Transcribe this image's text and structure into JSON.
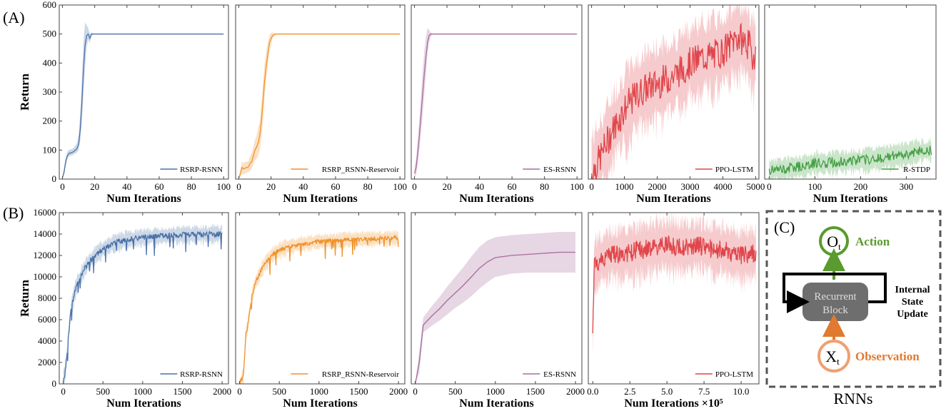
{
  "panel_labels": {
    "a": "(A)",
    "b": "(B)",
    "c": "(C)"
  },
  "colors": {
    "rsrp_rsnn": "#4a72a8",
    "rsrp_reservoir": "#f0922a",
    "es_rsnn": "#a86b9e",
    "ppo_lstm": "#e0454a",
    "r_stdp": "#45a045",
    "action": "#5a9a2e",
    "observation": "#e07a30",
    "block": "#6e6e6e"
  },
  "diagram": {
    "output_sub": "t",
    "output_base": "O",
    "input_base": "X",
    "input_sub": "t",
    "action_label": "Action",
    "observation_label": "Observation",
    "block_line1": "Recurrent",
    "block_line2": "Block",
    "internal_line1": "Internal",
    "internal_line2": "State",
    "internal_line3": "Update",
    "caption": "RNNs"
  },
  "chart_data": [
    {
      "id": "a1",
      "type": "line",
      "title": "",
      "legend": "RSRP-RSNN",
      "color": "#4a72a8",
      "xlabel": "Num Iterations",
      "ylabel": "Return",
      "xlim": [
        -2,
        103
      ],
      "ylim": [
        0,
        600
      ],
      "xticks": [
        0,
        20,
        40,
        60,
        80,
        100
      ],
      "yticks": [
        0,
        100,
        200,
        300,
        400,
        500,
        600
      ],
      "x": [
        0,
        1,
        2,
        3,
        4,
        5,
        6,
        7,
        8,
        9,
        10,
        11,
        12,
        13,
        14,
        15,
        16,
        17,
        18,
        19,
        20,
        25,
        30,
        40,
        60,
        80,
        100
      ],
      "y": [
        5,
        25,
        60,
        80,
        88,
        90,
        92,
        95,
        100,
        105,
        120,
        170,
        260,
        380,
        460,
        495,
        500,
        485,
        500,
        500,
        500,
        500,
        500,
        500,
        500,
        500,
        500
      ],
      "band": [
        [
          5,
          5
        ],
        [
          15,
          40
        ],
        [
          45,
          75
        ],
        [
          70,
          95
        ],
        [
          78,
          100
        ],
        [
          80,
          102
        ],
        [
          82,
          104
        ],
        [
          85,
          108
        ],
        [
          88,
          115
        ],
        [
          92,
          125
        ],
        [
          100,
          150
        ],
        [
          130,
          220
        ],
        [
          190,
          340
        ],
        [
          290,
          470
        ],
        [
          380,
          540
        ],
        [
          455,
          530
        ],
        [
          480,
          520
        ],
        [
          470,
          500
        ],
        [
          495,
          505
        ],
        [
          498,
          502
        ],
        [
          500,
          500
        ],
        [
          500,
          500
        ],
        [
          500,
          500
        ],
        [
          500,
          500
        ],
        [
          500,
          500
        ],
        [
          500,
          500
        ],
        [
          500,
          500
        ]
      ]
    },
    {
      "id": "a2",
      "type": "line",
      "legend": "RSRP_RSNN-Reservoir",
      "color": "#f0922a",
      "xlabel": "Num Iterations",
      "ylabel": "",
      "xlim": [
        -2,
        103
      ],
      "ylim": [
        0,
        600
      ],
      "xticks": [
        0,
        20,
        40,
        60,
        80,
        100
      ],
      "yticks": [],
      "x": [
        0,
        1,
        2,
        3,
        4,
        5,
        6,
        7,
        8,
        9,
        10,
        11,
        12,
        13,
        14,
        15,
        16,
        17,
        18,
        19,
        20,
        21,
        22,
        23,
        24,
        25,
        30,
        40,
        60,
        80,
        100
      ],
      "y": [
        5,
        20,
        40,
        35,
        38,
        40,
        42,
        55,
        60,
        80,
        100,
        110,
        125,
        150,
        200,
        270,
        340,
        390,
        430,
        470,
        485,
        495,
        498,
        500,
        500,
        500,
        500,
        500,
        500,
        500,
        500
      ],
      "band": [
        [
          5,
          5
        ],
        [
          5,
          35
        ],
        [
          20,
          60
        ],
        [
          15,
          55
        ],
        [
          20,
          60
        ],
        [
          22,
          60
        ],
        [
          25,
          62
        ],
        [
          30,
          80
        ],
        [
          35,
          90
        ],
        [
          50,
          110
        ],
        [
          65,
          135
        ],
        [
          70,
          150
        ],
        [
          80,
          175
        ],
        [
          100,
          200
        ],
        [
          140,
          260
        ],
        [
          200,
          330
        ],
        [
          280,
          400
        ],
        [
          340,
          440
        ],
        [
          390,
          470
        ],
        [
          440,
          495
        ],
        [
          465,
          505
        ],
        [
          485,
          505
        ],
        [
          492,
          504
        ],
        [
          498,
          502
        ],
        [
          500,
          500
        ],
        [
          500,
          500
        ],
        [
          500,
          500
        ],
        [
          500,
          500
        ],
        [
          500,
          500
        ],
        [
          500,
          500
        ],
        [
          500,
          500
        ]
      ]
    },
    {
      "id": "a3",
      "type": "line",
      "legend": "ES-RSNN",
      "color": "#a86b9e",
      "xlabel": "Num Iterations",
      "ylabel": "",
      "xlim": [
        -2,
        103
      ],
      "ylim": [
        0,
        600
      ],
      "xticks": [
        0,
        20,
        40,
        60,
        80,
        100
      ],
      "yticks": [],
      "x": [
        0,
        1,
        2,
        3,
        4,
        5,
        6,
        7,
        8,
        9,
        10,
        11,
        12,
        15,
        20,
        40,
        60,
        80,
        100
      ],
      "y": [
        20,
        40,
        90,
        150,
        220,
        290,
        360,
        420,
        470,
        495,
        500,
        500,
        500,
        500,
        500,
        500,
        500,
        500,
        500
      ],
      "band": [
        [
          5,
          40
        ],
        [
          15,
          70
        ],
        [
          50,
          140
        ],
        [
          100,
          210
        ],
        [
          160,
          290
        ],
        [
          220,
          370
        ],
        [
          290,
          440
        ],
        [
          360,
          490
        ],
        [
          430,
          520
        ],
        [
          470,
          515
        ],
        [
          490,
          505
        ],
        [
          498,
          502
        ],
        [
          500,
          500
        ],
        [
          500,
          500
        ],
        [
          500,
          500
        ],
        [
          500,
          500
        ],
        [
          500,
          500
        ],
        [
          500,
          500
        ],
        [
          500,
          500
        ]
      ]
    },
    {
      "id": "a4",
      "type": "line",
      "legend": "PPO-LSTM",
      "color": "#e0454a",
      "xlabel": "Num Iterations",
      "ylabel": "",
      "xlim": [
        -100,
        5100
      ],
      "ylim": [
        0,
        600
      ],
      "xticks": [
        0,
        1000,
        2000,
        3000,
        4000,
        5000
      ],
      "yticks": [],
      "noisy": {
        "points": 260,
        "noise": 55,
        "bandwidth": 120,
        "seed": 7
      },
      "x": [
        0,
        200,
        400,
        600,
        800,
        1000,
        1200,
        1400,
        1600,
        1800,
        2000,
        2200,
        2400,
        2600,
        2800,
        3000,
        3200,
        3400,
        3600,
        3800,
        4000,
        4200,
        4400,
        4600,
        4800,
        4900,
        5000
      ],
      "y": [
        20,
        60,
        110,
        160,
        200,
        240,
        270,
        290,
        310,
        320,
        330,
        340,
        350,
        365,
        380,
        400,
        410,
        420,
        425,
        430,
        440,
        460,
        490,
        480,
        460,
        420,
        440
      ]
    },
    {
      "id": "a5",
      "type": "line",
      "legend": "R-STDP",
      "color": "#45a045",
      "xlabel": "Num Iterations",
      "ylabel": "",
      "xlim": [
        -10,
        365
      ],
      "ylim": [
        0,
        600
      ],
      "xticks": [
        0,
        100,
        200,
        300
      ],
      "yticks": [],
      "noisy": {
        "points": 220,
        "noise": 18,
        "bandwidth": 35,
        "seed": 11
      },
      "x": [
        0,
        25,
        50,
        75,
        100,
        125,
        150,
        175,
        200,
        225,
        250,
        275,
        300,
        325,
        350,
        355
      ],
      "y": [
        30,
        32,
        40,
        45,
        55,
        55,
        60,
        62,
        65,
        70,
        75,
        80,
        85,
        95,
        100,
        95
      ]
    },
    {
      "id": "b1",
      "type": "line",
      "legend": "RSRP-RSNN",
      "color": "#4a72a8",
      "xlabel": "Num Iterations",
      "ylabel": "Return",
      "xlim": [
        -50,
        2080
      ],
      "ylim": [
        0,
        16000
      ],
      "xticks": [
        0,
        500,
        1000,
        1500,
        2000
      ],
      "yticks": [
        0,
        2000,
        4000,
        6000,
        8000,
        10000,
        12000,
        14000,
        16000
      ],
      "noisy": {
        "points": 320,
        "noise": 250,
        "bandwidth": 700,
        "seed": 3,
        "dips": true
      },
      "x": [
        0,
        20,
        50,
        80,
        100,
        150,
        200,
        300,
        400,
        500,
        600,
        700,
        800,
        900,
        1000,
        1200,
        1400,
        1600,
        1800,
        2000
      ],
      "y": [
        300,
        800,
        3000,
        5500,
        7000,
        8800,
        9800,
        11200,
        12000,
        12600,
        13000,
        13300,
        13500,
        13600,
        13700,
        13800,
        13900,
        13950,
        14000,
        14000
      ]
    },
    {
      "id": "b2",
      "type": "line",
      "legend": "RSRP_RSNN-Reservoir",
      "color": "#f0922a",
      "xlabel": "Num Iterations",
      "ylabel": "",
      "xlim": [
        -50,
        2080
      ],
      "ylim": [
        0,
        16000
      ],
      "xticks": [
        0,
        500,
        1000,
        1500,
        2000
      ],
      "yticks": [],
      "noisy": {
        "points": 320,
        "noise": 200,
        "bandwidth": 600,
        "seed": 5,
        "dips": true
      },
      "x": [
        0,
        50,
        80,
        100,
        120,
        150,
        200,
        300,
        400,
        500,
        600,
        800,
        1000,
        1200,
        1400,
        1600,
        1800,
        2000
      ],
      "y": [
        0,
        800,
        4800,
        5200,
        6500,
        8000,
        9500,
        11000,
        12000,
        12500,
        12800,
        13100,
        13300,
        13400,
        13500,
        13550,
        13600,
        13650
      ]
    },
    {
      "id": "b3",
      "type": "line",
      "legend": "ES-RSNN",
      "color": "#a86b9e",
      "xlabel": "Num Iterations",
      "ylabel": "",
      "xlim": [
        -50,
        2080
      ],
      "ylim": [
        0,
        16000
      ],
      "xticks": [
        0,
        500,
        1000,
        1500,
        2000
      ],
      "yticks": [],
      "x": [
        0,
        50,
        100,
        200,
        300,
        400,
        500,
        600,
        700,
        800,
        900,
        1000,
        1200,
        1400,
        1600,
        1800,
        2000
      ],
      "y": [
        0,
        2000,
        5500,
        6300,
        7000,
        7800,
        8500,
        9200,
        10000,
        10800,
        11400,
        11800,
        12000,
        12100,
        12200,
        12300,
        12300
      ],
      "band": [
        [
          0,
          0
        ],
        [
          1000,
          3000
        ],
        [
          4800,
          6200
        ],
        [
          5400,
          7200
        ],
        [
          5900,
          8100
        ],
        [
          6500,
          9100
        ],
        [
          7100,
          10000
        ],
        [
          7600,
          10900
        ],
        [
          8200,
          11900
        ],
        [
          8900,
          12800
        ],
        [
          9500,
          13400
        ],
        [
          10000,
          13700
        ],
        [
          10300,
          13900
        ],
        [
          10400,
          14000
        ],
        [
          10400,
          14100
        ],
        [
          10400,
          14200
        ],
        [
          10400,
          14200
        ]
      ]
    },
    {
      "id": "b4",
      "type": "line",
      "legend": "PPO-LSTM",
      "color": "#e0454a",
      "xlabel": "Num Iterations ×10⁵",
      "ylabel": "",
      "xlim": [
        -0.3,
        11.2
      ],
      "ylim": [
        0,
        16000
      ],
      "xticks": [
        0.0,
        2.5,
        5.0,
        7.5,
        10.0
      ],
      "xticklabels": [
        "0.0",
        "2.5",
        "5.0",
        "7.5",
        "10.0"
      ],
      "yticks": [],
      "noisy": {
        "points": 380,
        "noise": 900,
        "bandwidth": 2200,
        "seed": 9
      },
      "x": [
        0,
        0.1,
        0.2,
        0.5,
        1,
        2,
        3,
        4,
        5,
        6,
        7,
        8,
        9,
        10,
        11
      ],
      "y": [
        4600,
        11200,
        11000,
        11600,
        12000,
        12200,
        12400,
        12800,
        13000,
        12800,
        13000,
        12600,
        12400,
        12000,
        12200
      ]
    }
  ]
}
